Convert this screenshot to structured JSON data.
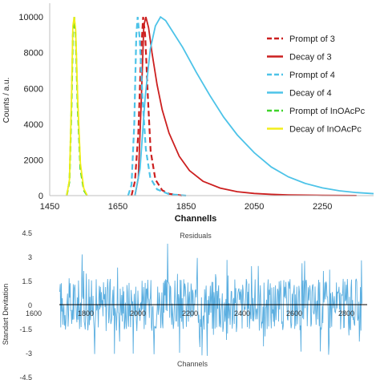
{
  "chart_data": [
    {
      "type": "line",
      "title": "",
      "xlabel": "Channells",
      "ylabel": "Counts / a.u.",
      "xlim": [
        1450,
        2400
      ],
      "ylim": [
        0,
        10500
      ],
      "xticks": [
        1450,
        1650,
        1850,
        2050,
        2250
      ],
      "yticks": [
        0,
        2000,
        4000,
        6000,
        8000,
        10000
      ],
      "grid": false,
      "legend_position": "right",
      "series": [
        {
          "name": "Prompt of 3",
          "style": "dashed",
          "color": "#cc1f1f",
          "x": [
            1690,
            1700,
            1710,
            1718,
            1724,
            1730,
            1738,
            1746,
            1760,
            1780,
            1800,
            1840
          ],
          "y": [
            0,
            800,
            3500,
            8000,
            10000,
            9000,
            5500,
            2500,
            900,
            300,
            100,
            0
          ]
        },
        {
          "name": "Decay of 3",
          "style": "solid",
          "color": "#cc1f1f",
          "x": [
            1700,
            1710,
            1718,
            1726,
            1732,
            1740,
            1750,
            1765,
            1780,
            1800,
            1830,
            1860,
            1900,
            1950,
            2000,
            2050,
            2100,
            2150,
            2250,
            2350
          ],
          "y": [
            0,
            1000,
            5000,
            9500,
            10000,
            9400,
            8000,
            6200,
            4800,
            3500,
            2200,
            1400,
            800,
            420,
            220,
            120,
            70,
            40,
            15,
            5
          ]
        },
        {
          "name": "Prompt of 4",
          "style": "dashed",
          "color": "#4dc3e8",
          "x": [
            1680,
            1690,
            1698,
            1704,
            1708,
            1714,
            1722,
            1732,
            1745,
            1765,
            1800,
            1850
          ],
          "y": [
            0,
            600,
            4000,
            9000,
            10000,
            8800,
            5500,
            2600,
            1000,
            350,
            80,
            0
          ]
        },
        {
          "name": "Decay of 4",
          "style": "solid",
          "color": "#4dc3e8",
          "x": [
            1700,
            1715,
            1730,
            1745,
            1760,
            1775,
            1790,
            1810,
            1840,
            1880,
            1920,
            1960,
            2000,
            2050,
            2100,
            2150,
            2200,
            2250,
            2300,
            2350,
            2400
          ],
          "y": [
            0,
            1500,
            5500,
            8200,
            9500,
            10000,
            9800,
            9200,
            8300,
            6900,
            5600,
            4400,
            3400,
            2400,
            1600,
            1050,
            680,
            430,
            270,
            170,
            110
          ]
        },
        {
          "name": "Prompt of InOAcPc",
          "style": "dashed",
          "color": "#3fd42a",
          "x": [
            1500,
            1508,
            1514,
            1518,
            1522,
            1526,
            1532,
            1540,
            1550,
            1560
          ],
          "y": [
            0,
            800,
            5000,
            9000,
            10000,
            9000,
            5000,
            1500,
            300,
            0
          ]
        },
        {
          "name": "Decay of InOAcPc",
          "style": "solid",
          "color": "#f2ee1a",
          "x": [
            1500,
            1508,
            1514,
            1518,
            1522,
            1526,
            1532,
            1540,
            1550,
            1560
          ],
          "y": [
            0,
            900,
            5500,
            9500,
            10000,
            9300,
            5500,
            1800,
            400,
            0
          ]
        }
      ]
    },
    {
      "type": "line",
      "title": "Residuals",
      "xlabel": "Channels",
      "ylabel": "Standart Devitation",
      "xlim": [
        1600,
        2880
      ],
      "ylim": [
        -4.5,
        4.5
      ],
      "xticks": [
        1600,
        1800,
        2000,
        2200,
        2400,
        2600,
        2800
      ],
      "xtick_labels": [
        "1600",
        "1800",
        "2000",
        "2200",
        "2400",
        "2600",
        "2800"
      ],
      "yticks": [
        4.5,
        3,
        1.5,
        0,
        -1.5,
        -3,
        -4.5
      ],
      "ytick_labels": [
        "4.5",
        "3",
        "1.5",
        "0",
        "-1.5",
        "-3",
        "-4.5"
      ],
      "grid": false,
      "series": [
        {
          "style": "solid",
          "color": "#5aaee0",
          "x_start": 1700,
          "x_end": 2860,
          "step": 2,
          "envelope": 2.2,
          "y_sample": [
            0.8,
            -1.2,
            2.1,
            -0.5,
            1.6,
            -2.3,
            0.4,
            1.1,
            -1.4,
            3.8,
            -3.0,
            0.9,
            -0.7,
            1.9,
            -1.8,
            0.3,
            2.4,
            -2.6,
            1.2,
            -0.9
          ]
        }
      ]
    }
  ]
}
